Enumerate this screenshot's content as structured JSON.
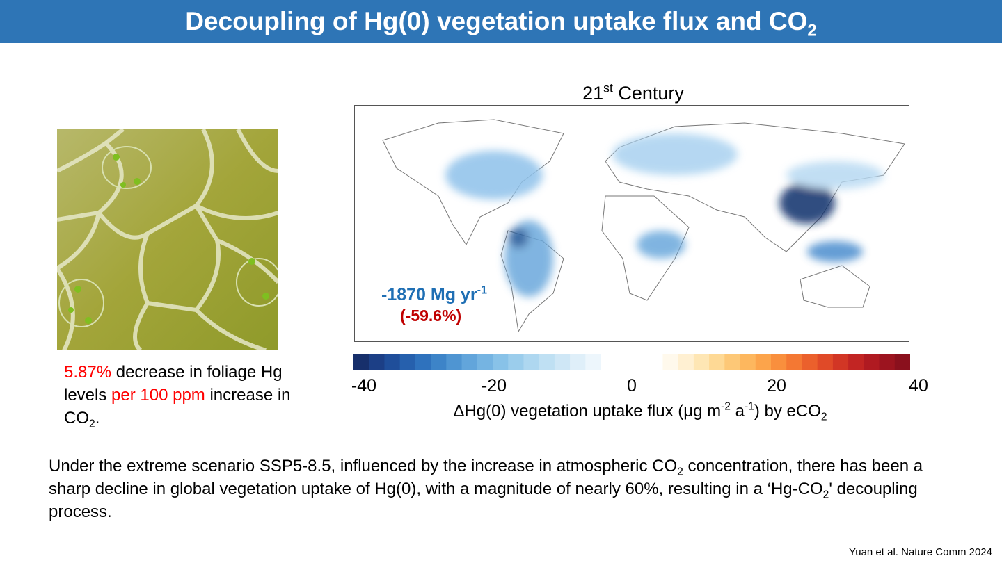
{
  "header": {
    "title": [
      "Decoupling of Hg(0) vegetation uptake flux and CO",
      "2"
    ]
  },
  "map": {
    "title": [
      "21",
      "st",
      " Century"
    ],
    "annotation": {
      "total": [
        "-1870 Mg yr",
        "-1"
      ],
      "percent": "(-59.6%)"
    }
  },
  "colorbar": {
    "ticks": [
      "-40",
      "-20",
      "0",
      "20",
      "40"
    ],
    "label": [
      "ΔHg(0) vegetation uptake flux (μg m",
      "-2",
      " a",
      "-1",
      ") by eCO",
      "2"
    ]
  },
  "caption": [
    "5.87%",
    " decrease in foliage Hg levels ",
    "per 100 ppm",
    " increase in CO",
    "2",
    "."
  ],
  "body": [
    "Under the extreme scenario SSP5-8.5, influenced by the increase in atmospheric CO",
    "2",
    " concentration, there has been a sharp decline in global vegetation uptake of Hg(0), with a magnitude of nearly 60%, resulting in a ‘Hg-CO",
    "2",
    "' decoupling process."
  ],
  "citation": "Yuan et al. Nature Comm 2024"
}
